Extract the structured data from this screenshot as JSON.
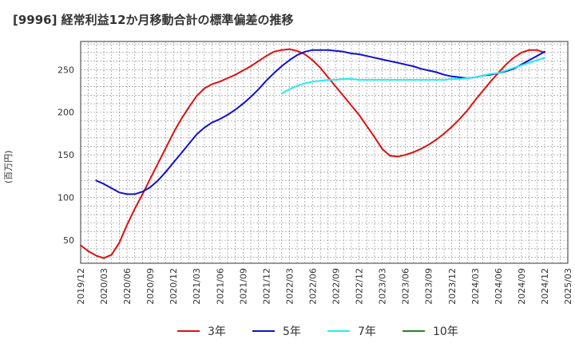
{
  "chart_data": {
    "type": "line",
    "title": "[9996]  経常利益12か月移動合計の標準偏差の推移",
    "ylabel": "(百万円)",
    "xlabel": "",
    "x_tick_labels": [
      "2019/12",
      "2020/03",
      "2020/06",
      "2020/09",
      "2020/12",
      "2021/03",
      "2021/06",
      "2021/09",
      "2021/12",
      "2022/03",
      "2022/06",
      "2022/09",
      "2022/12",
      "2023/03",
      "2023/06",
      "2023/09",
      "2023/12",
      "2024/03",
      "2024/06",
      "2024/09",
      "2024/12",
      "2025/03"
    ],
    "y_ticks": [
      50,
      100,
      150,
      200,
      250
    ],
    "ylim": [
      23,
      283
    ],
    "grid": true,
    "legend_position": "bottom",
    "series": [
      {
        "name": "3年",
        "color": "#dd1111",
        "points": [
          [
            "2019/12",
            44
          ],
          [
            "2020/01",
            37
          ],
          [
            "2020/02",
            32
          ],
          [
            "2020/03",
            29
          ],
          [
            "2020/04",
            33
          ],
          [
            "2020/05",
            47
          ],
          [
            "2020/06",
            68
          ],
          [
            "2020/07",
            87
          ],
          [
            "2020/08",
            104
          ],
          [
            "2020/09",
            122
          ],
          [
            "2020/10",
            140
          ],
          [
            "2020/11",
            158
          ],
          [
            "2020/12",
            176
          ],
          [
            "2021/01",
            192
          ],
          [
            "2021/02",
            206
          ],
          [
            "2021/03",
            219
          ],
          [
            "2021/04",
            228
          ],
          [
            "2021/05",
            233
          ],
          [
            "2021/06",
            236
          ],
          [
            "2021/07",
            240
          ],
          [
            "2021/08",
            244
          ],
          [
            "2021/09",
            249
          ],
          [
            "2021/10",
            254
          ],
          [
            "2021/11",
            260
          ],
          [
            "2021/12",
            266
          ],
          [
            "2022/01",
            271
          ],
          [
            "2022/02",
            273
          ],
          [
            "2022/03",
            274
          ],
          [
            "2022/04",
            272
          ],
          [
            "2022/05",
            268
          ],
          [
            "2022/06",
            261
          ],
          [
            "2022/07",
            252
          ],
          [
            "2022/08",
            241
          ],
          [
            "2022/09",
            230
          ],
          [
            "2022/10",
            219
          ],
          [
            "2022/11",
            208
          ],
          [
            "2022/12",
            197
          ],
          [
            "2023/01",
            184
          ],
          [
            "2023/02",
            171
          ],
          [
            "2023/03",
            157
          ],
          [
            "2023/04",
            149
          ],
          [
            "2023/05",
            148
          ],
          [
            "2023/06",
            150
          ],
          [
            "2023/07",
            153
          ],
          [
            "2023/08",
            157
          ],
          [
            "2023/09",
            162
          ],
          [
            "2023/10",
            168
          ],
          [
            "2023/11",
            175
          ],
          [
            "2023/12",
            183
          ],
          [
            "2024/01",
            192
          ],
          [
            "2024/02",
            202
          ],
          [
            "2024/03",
            214
          ],
          [
            "2024/04",
            225
          ],
          [
            "2024/05",
            236
          ],
          [
            "2024/06",
            246
          ],
          [
            "2024/07",
            256
          ],
          [
            "2024/08",
            264
          ],
          [
            "2024/09",
            270
          ],
          [
            "2024/10",
            273
          ],
          [
            "2024/11",
            273
          ],
          [
            "2024/12",
            270
          ]
        ]
      },
      {
        "name": "5年",
        "color": "#1111cc",
        "points": [
          [
            "2020/02",
            120
          ],
          [
            "2020/03",
            116
          ],
          [
            "2020/04",
            111
          ],
          [
            "2020/05",
            106
          ],
          [
            "2020/06",
            104
          ],
          [
            "2020/07",
            104
          ],
          [
            "2020/08",
            107
          ],
          [
            "2020/09",
            112
          ],
          [
            "2020/10",
            120
          ],
          [
            "2020/11",
            130
          ],
          [
            "2020/12",
            141
          ],
          [
            "2021/01",
            152
          ],
          [
            "2021/02",
            163
          ],
          [
            "2021/03",
            174
          ],
          [
            "2021/04",
            182
          ],
          [
            "2021/05",
            188
          ],
          [
            "2021/06",
            192
          ],
          [
            "2021/07",
            197
          ],
          [
            "2021/08",
            203
          ],
          [
            "2021/09",
            210
          ],
          [
            "2021/10",
            218
          ],
          [
            "2021/11",
            227
          ],
          [
            "2021/12",
            237
          ],
          [
            "2022/01",
            246
          ],
          [
            "2022/02",
            254
          ],
          [
            "2022/03",
            261
          ],
          [
            "2022/04",
            267
          ],
          [
            "2022/05",
            271
          ],
          [
            "2022/06",
            273
          ],
          [
            "2022/07",
            273
          ],
          [
            "2022/08",
            273
          ],
          [
            "2022/09",
            272
          ],
          [
            "2022/10",
            271
          ],
          [
            "2022/11",
            269
          ],
          [
            "2022/12",
            268
          ],
          [
            "2023/01",
            266
          ],
          [
            "2023/02",
            264
          ],
          [
            "2023/03",
            262
          ],
          [
            "2023/04",
            260
          ],
          [
            "2023/05",
            258
          ],
          [
            "2023/06",
            256
          ],
          [
            "2023/07",
            254
          ],
          [
            "2023/08",
            251
          ],
          [
            "2023/09",
            249
          ],
          [
            "2023/10",
            247
          ],
          [
            "2023/11",
            244
          ],
          [
            "2023/12",
            242
          ],
          [
            "2024/01",
            241
          ],
          [
            "2024/02",
            240
          ],
          [
            "2024/03",
            241
          ],
          [
            "2024/04",
            243
          ],
          [
            "2024/05",
            244
          ],
          [
            "2024/06",
            246
          ],
          [
            "2024/07",
            248
          ],
          [
            "2024/08",
            251
          ],
          [
            "2024/09",
            256
          ],
          [
            "2024/10",
            261
          ],
          [
            "2024/11",
            266
          ],
          [
            "2024/12",
            271
          ]
        ]
      },
      {
        "name": "7年",
        "color": "#22eeee",
        "points": [
          [
            "2022/02",
            222
          ],
          [
            "2022/03",
            227
          ],
          [
            "2022/04",
            231
          ],
          [
            "2022/05",
            234
          ],
          [
            "2022/06",
            236
          ],
          [
            "2022/07",
            237
          ],
          [
            "2022/08",
            238
          ],
          [
            "2022/09",
            238
          ],
          [
            "2022/10",
            239
          ],
          [
            "2022/11",
            239
          ],
          [
            "2022/12",
            238
          ],
          [
            "2023/01",
            238
          ],
          [
            "2023/02",
            238
          ],
          [
            "2023/03",
            238
          ],
          [
            "2023/04",
            238
          ],
          [
            "2023/05",
            238
          ],
          [
            "2023/06",
            238
          ],
          [
            "2023/07",
            238
          ],
          [
            "2023/08",
            238
          ],
          [
            "2023/09",
            238
          ],
          [
            "2023/10",
            238
          ],
          [
            "2023/11",
            238
          ],
          [
            "2023/12",
            239
          ],
          [
            "2024/01",
            239
          ],
          [
            "2024/02",
            240
          ],
          [
            "2024/03",
            241
          ],
          [
            "2024/04",
            243
          ],
          [
            "2024/05",
            245
          ],
          [
            "2024/06",
            246
          ],
          [
            "2024/07",
            249
          ],
          [
            "2024/08",
            252
          ],
          [
            "2024/09",
            255
          ],
          [
            "2024/10",
            258
          ],
          [
            "2024/11",
            261
          ],
          [
            "2024/12",
            264
          ]
        ]
      },
      {
        "name": "10年",
        "color": "#228822",
        "points": []
      }
    ]
  }
}
